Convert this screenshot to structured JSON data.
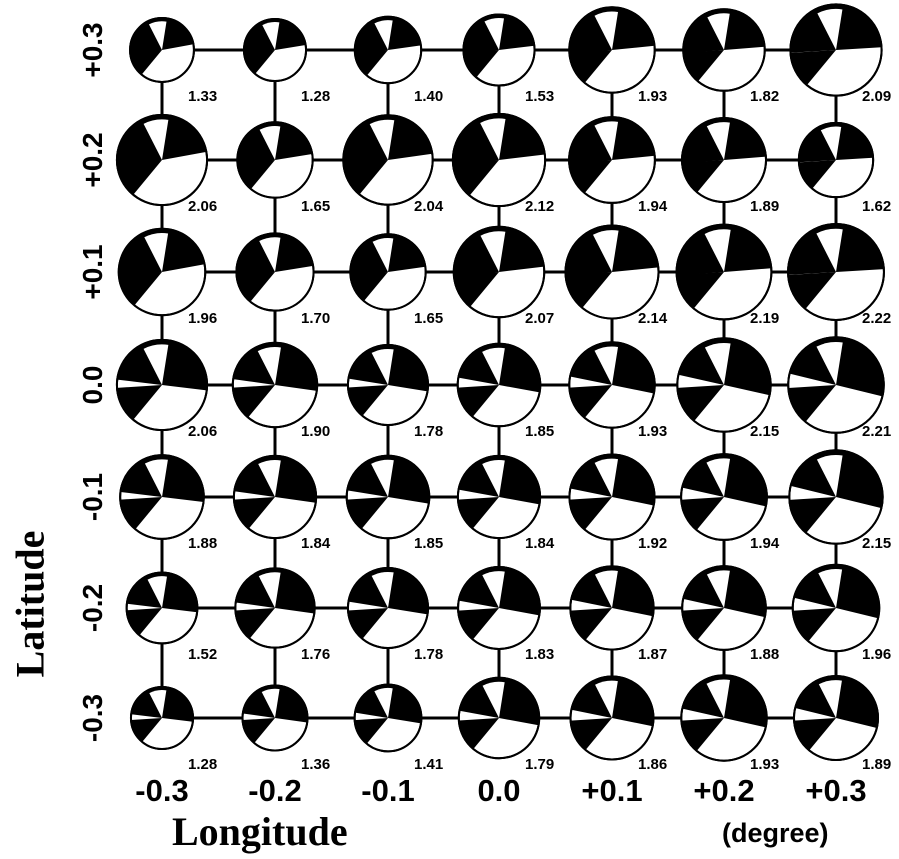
{
  "axes": {
    "x_title": "Longitude",
    "y_title": "Latitude",
    "unit": "(degree)",
    "x_ticks": [
      "-0.3",
      "-0.2",
      "-0.1",
      "0.0",
      "+0.1",
      "+0.2",
      "+0.3"
    ],
    "y_ticks": [
      "+0.3",
      "+0.2",
      "+0.1",
      "0.0",
      "-0.1",
      "-0.2",
      "-0.3"
    ]
  },
  "grid": {
    "rows": [
      {
        "latitude": "+0.3",
        "values": [
          "1.33",
          "1.28",
          "1.40",
          "1.53",
          "1.93",
          "1.82",
          "2.09"
        ]
      },
      {
        "latitude": "+0.2",
        "values": [
          "2.06",
          "1.65",
          "2.04",
          "2.12",
          "1.94",
          "1.89",
          "1.62"
        ]
      },
      {
        "latitude": "+0.1",
        "values": [
          "1.96",
          "1.70",
          "1.65",
          "2.07",
          "2.14",
          "2.19",
          "2.22"
        ]
      },
      {
        "latitude": "0.0",
        "values": [
          "2.06",
          "1.90",
          "1.78",
          "1.85",
          "1.93",
          "2.15",
          "2.21"
        ]
      },
      {
        "latitude": "-0.1",
        "values": [
          "1.88",
          "1.84",
          "1.85",
          "1.84",
          "1.92",
          "1.94",
          "2.15"
        ]
      },
      {
        "latitude": "-0.2",
        "values": [
          "1.52",
          "1.76",
          "1.78",
          "1.83",
          "1.87",
          "1.88",
          "1.96"
        ]
      },
      {
        "latitude": "-0.3",
        "values": [
          "1.28",
          "1.36",
          "1.41",
          "1.79",
          "1.86",
          "1.93",
          "1.89"
        ]
      }
    ]
  },
  "colors": {
    "ink": "#000000",
    "paper": "#ffffff"
  }
}
